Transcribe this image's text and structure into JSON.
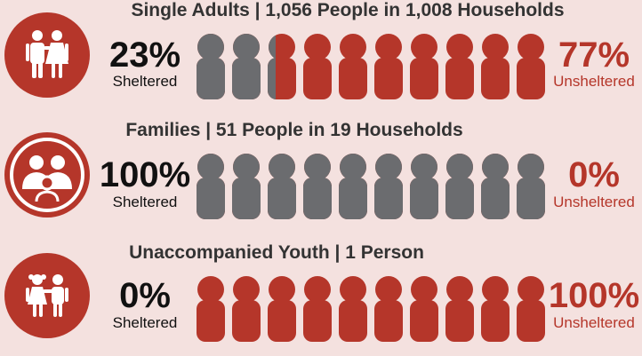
{
  "colors": {
    "sheltered": "#6b6c6f",
    "unsheltered": "#b5362a",
    "background": "#f4e1df"
  },
  "labels": {
    "sheltered": "Sheltered",
    "unsheltered": "Unsheltered"
  },
  "chart_data": [
    {
      "type": "bar",
      "title": "Single Adults | 1,056 People in 1,008 Households",
      "icon": "adult-couple-icon",
      "categories": [
        "Sheltered",
        "Unsheltered"
      ],
      "values": [
        23,
        77
      ],
      "sheltered_text": "23%",
      "unsheltered_text": "77%"
    },
    {
      "type": "bar",
      "title": "Families | 51 People in 19 Households",
      "icon": "family-icon",
      "categories": [
        "Sheltered",
        "Unsheltered"
      ],
      "values": [
        100,
        0
      ],
      "sheltered_text": "100%",
      "unsheltered_text": "0%"
    },
    {
      "type": "bar",
      "title": "Unaccompanied Youth | 1 Person",
      "icon": "children-icon",
      "categories": [
        "Sheltered",
        "Unsheltered"
      ],
      "values": [
        0,
        100
      ],
      "sheltered_text": "0%",
      "unsheltered_text": "100%"
    }
  ]
}
